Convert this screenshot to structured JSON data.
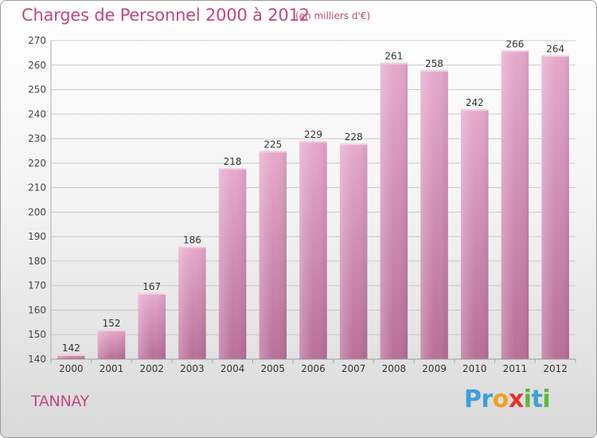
{
  "title": "Charges de Personnel 2000 à 2012",
  "subtitle": "(en milliers d'€)",
  "commune": "TANNAY",
  "logo": {
    "brand": "Proxiti",
    "letters": [
      "P",
      "r",
      "o",
      "x",
      "i",
      "t",
      "i"
    ]
  },
  "colors": {
    "accent": "#c0487e",
    "bar": "#d98fba",
    "bar_top": "#e6a9cc"
  },
  "chart_data": {
    "type": "bar",
    "title": "Charges de Personnel 2000 à 2012",
    "subtitle": "(en milliers d'€)",
    "xlabel": "",
    "ylabel": "",
    "categories": [
      "2000",
      "2001",
      "2002",
      "2003",
      "2004",
      "2005",
      "2006",
      "2007",
      "2008",
      "2009",
      "2010",
      "2011",
      "2012"
    ],
    "values": [
      142,
      152,
      167,
      186,
      218,
      225,
      229,
      228,
      261,
      258,
      242,
      266,
      264
    ],
    "ylim": [
      140,
      270
    ],
    "yticks": [
      140,
      150,
      160,
      170,
      180,
      190,
      200,
      210,
      220,
      230,
      240,
      250,
      260,
      270
    ],
    "grid": true,
    "legend": "none"
  }
}
